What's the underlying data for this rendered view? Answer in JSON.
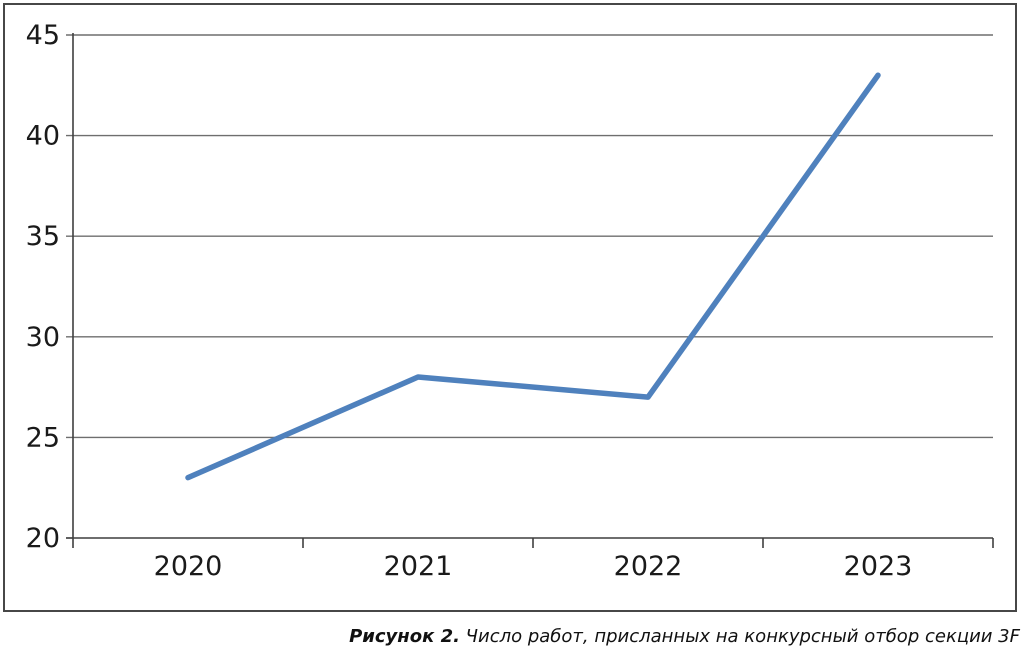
{
  "chart_data": {
    "type": "line",
    "categories": [
      "2020",
      "2021",
      "2022",
      "2023"
    ],
    "series": [
      {
        "name": "Число работ",
        "values": [
          23,
          28,
          27,
          43
        ]
      }
    ],
    "title": "",
    "xlabel": "",
    "ylabel": "",
    "ylim": [
      20,
      45
    ],
    "yticks": [
      20,
      25,
      30,
      35,
      40,
      45
    ],
    "grid": "horizontal-only",
    "legend_position": "none",
    "colors": {
      "line": "#4F81BD",
      "gridline": "#6e6e6e",
      "axis": "#3f3f3f",
      "tick_text": "#1a1a1a",
      "frame": "#474747",
      "background": "#ffffff"
    }
  },
  "caption": {
    "label": "Рисунок 2.",
    "text": "Число работ, присланных на конкурсный отбор секции 3F"
  }
}
